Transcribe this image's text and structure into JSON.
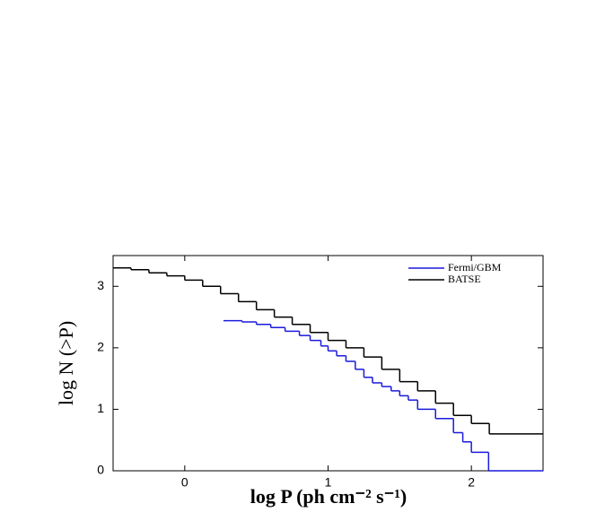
{
  "chart_data": {
    "type": "line",
    "step": "post",
    "x_label": "log P (ph cm⁻² s⁻¹)",
    "y_label": "log N (>P)",
    "xlim": [
      -0.5,
      2.5
    ],
    "ylim": [
      0,
      3.5
    ],
    "xticks": [
      0,
      1,
      2
    ],
    "yticks": [
      0,
      1,
      2,
      3
    ],
    "legend_position": "upper right",
    "series": [
      {
        "name": "Fermi/GBM",
        "color": "#1a1adb",
        "x": [
          0.27,
          0.4,
          0.5,
          0.6,
          0.7,
          0.8,
          0.875,
          0.95,
          1.0,
          1.06,
          1.125,
          1.19,
          1.25,
          1.31,
          1.375,
          1.44,
          1.5,
          1.56,
          1.625,
          1.75,
          1.875,
          1.94,
          2.0,
          2.12
        ],
        "values": [
          2.44,
          2.42,
          2.38,
          2.33,
          2.27,
          2.2,
          2.12,
          2.03,
          1.95,
          1.87,
          1.78,
          1.65,
          1.52,
          1.43,
          1.37,
          1.3,
          1.22,
          1.15,
          1.0,
          0.85,
          0.62,
          0.47,
          0.3,
          0
        ]
      },
      {
        "name": "BATSE",
        "color": "#000000",
        "x": [
          -0.5,
          -0.375,
          -0.25,
          -0.125,
          0,
          0.125,
          0.25,
          0.375,
          0.5,
          0.625,
          0.75,
          0.875,
          1.0,
          1.125,
          1.25,
          1.375,
          1.5,
          1.625,
          1.75,
          1.875,
          2.0,
          2.125
        ],
        "values": [
          3.3,
          3.27,
          3.22,
          3.17,
          3.1,
          3.0,
          2.88,
          2.75,
          2.62,
          2.5,
          2.38,
          2.25,
          2.12,
          2.0,
          1.85,
          1.65,
          1.45,
          1.3,
          1.1,
          0.9,
          0.77,
          0.6
        ]
      }
    ]
  }
}
